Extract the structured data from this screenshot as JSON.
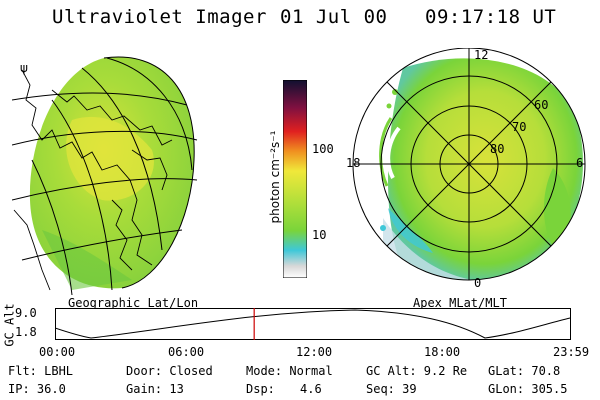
{
  "header": {
    "instrument": "Ultraviolet Imager",
    "date": "01 Jul 00",
    "time": "09:17:18 UT"
  },
  "geo_panel": {
    "label": "Geographic Lat/Lon"
  },
  "colorbar": {
    "unit_label": "photon cm⁻²s⁻¹",
    "ticks": [
      "100",
      "10"
    ]
  },
  "polar_panel": {
    "label": "Apex MLat/MLT",
    "mlt_labels": [
      "12",
      "18",
      "6",
      "0"
    ],
    "lat_labels": [
      "60",
      "70",
      "80"
    ]
  },
  "altitude_plot": {
    "ylabel": "GC Alt",
    "yticks": [
      "9.0",
      "1.8"
    ],
    "xticks": [
      "00:00",
      "06:00",
      "12:00",
      "18:00",
      "23:59"
    ],
    "current_time_fraction": 0.386
  },
  "info": {
    "flt": "Flt: LBHL",
    "ip": "IP: 36.0",
    "door": "Door: Closed",
    "gain": "Gain: 13",
    "mode": "Mode: Normal",
    "dsp_label": "Dsp:",
    "dsp_value": "4.6",
    "gc_alt": "GC Alt: 9.2 Re",
    "seq": "Seq: 39",
    "glat": "GLat: 70.8",
    "glon": "GLon: 305.5"
  },
  "colors": {
    "aurora_green": "#7ad43a",
    "aurora_yellow": "#e6e83a",
    "aurora_cyan": "#3ec8d8",
    "marker": "#cc0000"
  }
}
